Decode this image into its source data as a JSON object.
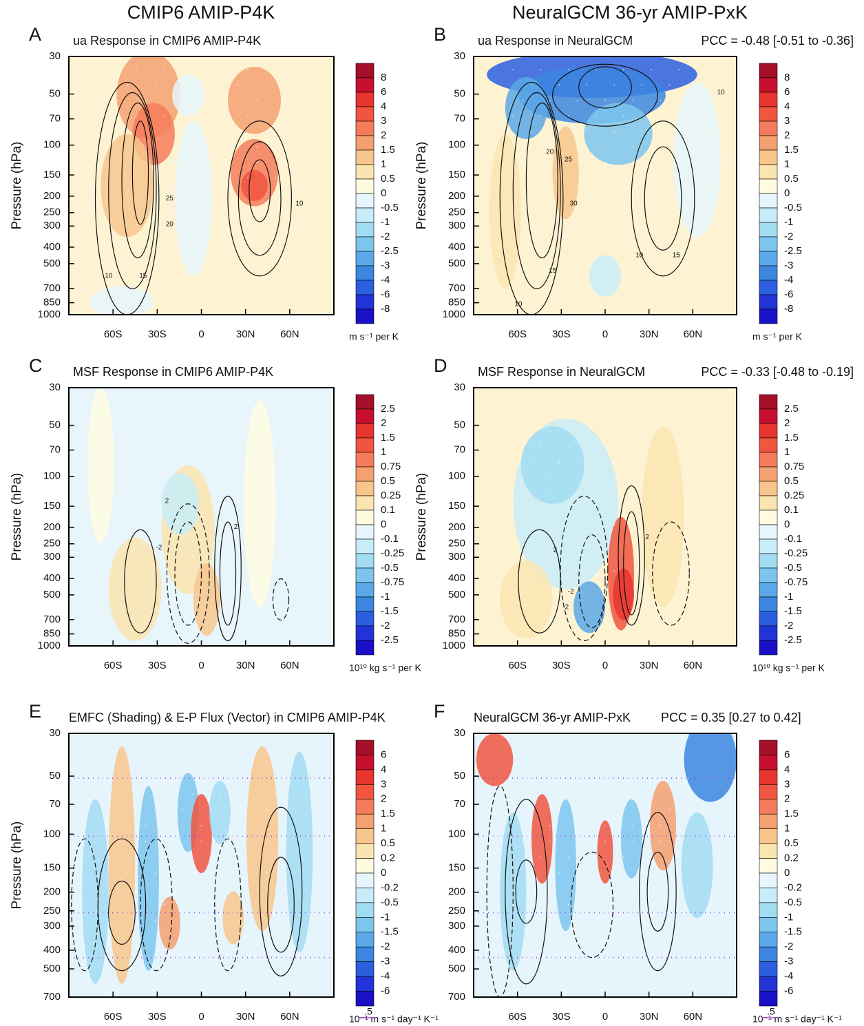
{
  "column_titles": [
    "CMIP6 AMIP-P4K",
    "NeuralGCM 36-yr AMIP-PxK"
  ],
  "chart_data": [
    {
      "type": "contour",
      "panel": "A",
      "title": "ua Response in CMIP6 AMIP-P4K",
      "ylabel": "Pressure (hPa)",
      "xlim": [
        -90,
        90
      ],
      "xticks": [
        {
          "value": -60,
          "label": "60S"
        },
        {
          "value": -30,
          "label": "30S"
        },
        0,
        {
          "value": 30,
          "label": "30N"
        },
        {
          "value": 60,
          "label": "60N"
        }
      ],
      "ylim": [
        1000,
        30
      ],
      "log_y": true,
      "yticks": [
        30,
        50,
        70,
        100,
        150,
        200,
        250,
        300,
        400,
        500,
        700,
        850,
        1000
      ],
      "colorbar": {
        "label": "m s⁻¹ per K",
        "ticks": [
          8,
          6,
          4,
          3,
          2,
          1.5,
          1,
          0.5,
          0,
          -0.5,
          -1,
          -2,
          -2.5,
          -3,
          -4,
          -6,
          -8
        ],
        "colors": [
          "#a50f2a",
          "#c8102e",
          "#e8352f",
          "#f0553f",
          "#f47c5c",
          "#f5a070",
          "#f8c58c",
          "#fbe4b0",
          "#fffbe0",
          "#e6f6fc",
          "#c8ecf8",
          "#a2dcf2",
          "#7cc6ee",
          "#5aa8e8",
          "#3c86e0",
          "#2b5fe0",
          "#2233d8",
          "#1a10c8"
        ]
      },
      "contour_labels": [
        10,
        15,
        20,
        25,
        10
      ]
    },
    {
      "type": "contour",
      "panel": "B",
      "title": "ua Response in NeuralGCM",
      "pcc": "PCC = -0.48 [-0.51 to -0.36]",
      "ylabel": "Pressure (hPa)",
      "xlim": [
        -90,
        90
      ],
      "xticks": [
        {
          "value": -60,
          "label": "60S"
        },
        {
          "value": -30,
          "label": "30S"
        },
        0,
        {
          "value": 30,
          "label": "30N"
        },
        {
          "value": 60,
          "label": "60N"
        }
      ],
      "ylim": [
        1000,
        30
      ],
      "log_y": true,
      "yticks": [
        30,
        50,
        70,
        100,
        150,
        200,
        250,
        300,
        400,
        500,
        700,
        850,
        1000
      ],
      "colorbar": {
        "label": "m s⁻¹ per K",
        "ticks": [
          8,
          6,
          4,
          3,
          2,
          1.5,
          1,
          0.5,
          0,
          -0.5,
          -1,
          -2,
          -2.5,
          -3,
          -4,
          -6,
          -8
        ],
        "colors": [
          "#a50f2a",
          "#c8102e",
          "#e8352f",
          "#f0553f",
          "#f47c5c",
          "#f5a070",
          "#f8c58c",
          "#fbe4b0",
          "#fffbe0",
          "#e6f6fc",
          "#c8ecf8",
          "#a2dcf2",
          "#7cc6ee",
          "#5aa8e8",
          "#3c86e0",
          "#2b5fe0",
          "#2233d8",
          "#1a10c8"
        ]
      },
      "contour_labels": [
        10,
        15,
        20,
        25,
        30,
        10,
        15,
        10
      ]
    },
    {
      "type": "contour",
      "panel": "C",
      "title": "MSF Response in CMIP6 AMIP-P4K",
      "ylabel": "Pressure (hPa)",
      "xlim": [
        -90,
        90
      ],
      "xticks": [
        {
          "value": -60,
          "label": "60S"
        },
        {
          "value": -30,
          "label": "30S"
        },
        0,
        {
          "value": 30,
          "label": "30N"
        },
        {
          "value": 60,
          "label": "60N"
        }
      ],
      "ylim": [
        1000,
        30
      ],
      "log_y": true,
      "yticks": [
        30,
        50,
        70,
        100,
        150,
        200,
        250,
        300,
        400,
        500,
        700,
        850,
        1000
      ],
      "colorbar": {
        "label": "10¹⁰ kg s⁻¹ per K",
        "ticks": [
          2.5,
          2,
          1.5,
          1,
          0.75,
          0.5,
          0.25,
          0.1,
          0,
          -0.1,
          -0.25,
          -0.5,
          -0.75,
          -1,
          -1.5,
          -2,
          -2.5
        ],
        "colors": [
          "#a50f2a",
          "#c8102e",
          "#e8352f",
          "#f0553f",
          "#f47c5c",
          "#f5a070",
          "#f8c58c",
          "#fbe4b0",
          "#fffbe0",
          "#e6f6fc",
          "#c8ecf8",
          "#a2dcf2",
          "#7cc6ee",
          "#5aa8e8",
          "#3c86e0",
          "#2b5fe0",
          "#2233d8",
          "#1a10c8"
        ]
      },
      "contour_labels": [
        2,
        -2,
        2
      ]
    },
    {
      "type": "contour",
      "panel": "D",
      "title": "MSF Response in NeuralGCM",
      "pcc": "PCC = -0.33 [-0.48 to -0.19]",
      "ylabel": "Pressure (hPa)",
      "xlim": [
        -90,
        90
      ],
      "xticks": [
        {
          "value": -60,
          "label": "60S"
        },
        {
          "value": -30,
          "label": "30S"
        },
        0,
        {
          "value": 30,
          "label": "30N"
        },
        {
          "value": 60,
          "label": "60N"
        }
      ],
      "ylim": [
        1000,
        30
      ],
      "log_y": true,
      "yticks": [
        30,
        50,
        70,
        100,
        150,
        200,
        250,
        300,
        400,
        500,
        700,
        850,
        1000
      ],
      "colorbar": {
        "label": "10¹⁰ kg s⁻¹ per K",
        "ticks": [
          2.5,
          2,
          1.5,
          1,
          0.75,
          0.5,
          0.25,
          0.1,
          0,
          -0.1,
          -0.25,
          -0.5,
          -0.75,
          -1,
          -1.5,
          -2,
          -2.5
        ],
        "colors": [
          "#a50f2a",
          "#c8102e",
          "#e8352f",
          "#f0553f",
          "#f47c5c",
          "#f5a070",
          "#f8c58c",
          "#fbe4b0",
          "#fffbe0",
          "#e6f6fc",
          "#c8ecf8",
          "#a2dcf2",
          "#7cc6ee",
          "#5aa8e8",
          "#3c86e0",
          "#2b5fe0",
          "#2233d8",
          "#1a10c8"
        ]
      },
      "contour_labels": [
        2,
        -2,
        -2,
        2
      ]
    },
    {
      "type": "contour",
      "panel": "E",
      "title": "EMFC (Shading) & E-P Flux (Vector) in CMIP6 AMIP-P4K",
      "ylabel": "Pressure (hPa)",
      "xlim": [
        -90,
        90
      ],
      "xticks": [
        {
          "value": -60,
          "label": "60S"
        },
        {
          "value": -30,
          "label": "30S"
        },
        0,
        {
          "value": 30,
          "label": "30N"
        },
        {
          "value": 60,
          "label": "60N"
        }
      ],
      "ylim": [
        700,
        30
      ],
      "log_y": true,
      "yticks": [
        30,
        50,
        70,
        100,
        150,
        200,
        250,
        300,
        400,
        500,
        700
      ],
      "colorbar": {
        "label": "10⁻¹ m s⁻¹ day⁻¹ K⁻¹",
        "ticks": [
          6,
          4,
          3,
          2,
          1.5,
          1,
          0.5,
          0.2,
          0,
          -0.2,
          -0.5,
          -1,
          -1.5,
          -2,
          -3,
          -4,
          -6
        ],
        "colors": [
          "#a50f2a",
          "#c8102e",
          "#e8352f",
          "#f0553f",
          "#f47c5c",
          "#f5a070",
          "#f8c58c",
          "#fbe4b0",
          "#fffbe0",
          "#e6f6fc",
          "#c8ecf8",
          "#a2dcf2",
          "#7cc6ee",
          "#5aa8e8",
          "#3c86e0",
          "#2b5fe0",
          "#2233d8",
          "#1a10c8"
        ]
      },
      "vector_label": ".5"
    },
    {
      "type": "contour",
      "panel": "F",
      "title": "NeuralGCM 36-yr AMIP-PxK",
      "pcc": "PCC = 0.35 [0.27 to 0.42]",
      "xlim": [
        -90,
        90
      ],
      "xticks": [
        {
          "value": -60,
          "label": "60S"
        },
        {
          "value": -30,
          "label": "30S"
        },
        0,
        {
          "value": 30,
          "label": "30N"
        },
        {
          "value": 60,
          "label": "60N"
        }
      ],
      "ylim": [
        700,
        30
      ],
      "log_y": true,
      "yticks": [
        30,
        50,
        70,
        100,
        150,
        200,
        250,
        300,
        400,
        500,
        700
      ],
      "colorbar": {
        "label": "10⁻¹ m s⁻¹ day⁻¹ K⁻¹",
        "ticks": [
          6,
          4,
          3,
          2,
          1.5,
          1,
          0.5,
          0.2,
          0,
          -0.2,
          -0.5,
          -1,
          -1.5,
          -2,
          -3,
          -4,
          -6
        ],
        "colors": [
          "#a50f2a",
          "#c8102e",
          "#e8352f",
          "#f0553f",
          "#f47c5c",
          "#f5a070",
          "#f8c58c",
          "#fbe4b0",
          "#fffbe0",
          "#e6f6fc",
          "#c8ecf8",
          "#a2dcf2",
          "#7cc6ee",
          "#5aa8e8",
          "#3c86e0",
          "#2b5fe0",
          "#2233d8",
          "#1a10c8"
        ]
      },
      "vector_label": ".5"
    }
  ]
}
